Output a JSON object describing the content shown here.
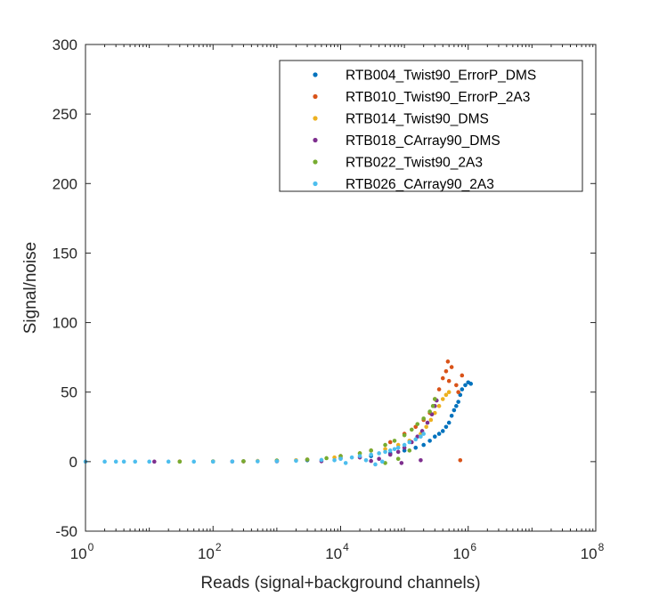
{
  "chart_data": {
    "type": "scatter",
    "title": "",
    "xlabel": "Reads (signal+background channels)",
    "ylabel": "Signal/noise",
    "x_scale": "log",
    "xlim": [
      1,
      100000000
    ],
    "ylim": [
      -50,
      300
    ],
    "x_ticks": [
      {
        "base": "10",
        "exp": "0"
      },
      {
        "base": "10",
        "exp": "2"
      },
      {
        "base": "10",
        "exp": "4"
      },
      {
        "base": "10",
        "exp": "6"
      },
      {
        "base": "10",
        "exp": "8"
      }
    ],
    "y_ticks": [
      "-50",
      "0",
      "50",
      "100",
      "150",
      "200",
      "250",
      "300"
    ],
    "grid": false,
    "legend_position": "top-right",
    "series": [
      {
        "name": "RTB004_Twist90_ErrorP_DMS",
        "color": "#0072BD",
        "points": [
          [
            200000,
            12
          ],
          [
            300000,
            18
          ],
          [
            400000,
            22
          ],
          [
            500000,
            28
          ],
          [
            550000,
            33
          ],
          [
            600000,
            37
          ],
          [
            650000,
            40
          ],
          [
            700000,
            43
          ],
          [
            750000,
            48
          ],
          [
            800000,
            52
          ],
          [
            900000,
            55
          ],
          [
            1000000,
            57
          ],
          [
            1100000,
            56
          ],
          [
            450000,
            25
          ],
          [
            350000,
            20
          ],
          [
            250000,
            15
          ],
          [
            150000,
            10
          ],
          [
            100000,
            8
          ],
          [
            60000,
            6
          ],
          [
            30000,
            4
          ],
          [
            10000,
            2.5
          ],
          [
            3000,
            1
          ],
          [
            1000,
            0.5
          ],
          [
            300,
            0.2
          ],
          [
            100,
            0.1
          ]
        ]
      },
      {
        "name": "RTB010_Twist90_ErrorP_2A3",
        "color": "#D95319",
        "points": [
          [
            300000,
            45
          ],
          [
            350000,
            52
          ],
          [
            400000,
            60
          ],
          [
            450000,
            65
          ],
          [
            480000,
            72
          ],
          [
            550000,
            68
          ],
          [
            650000,
            55
          ],
          [
            700000,
            50
          ],
          [
            800000,
            62
          ],
          [
            750000,
            1
          ],
          [
            500000,
            58
          ],
          [
            250000,
            35
          ],
          [
            200000,
            30
          ],
          [
            150000,
            25
          ],
          [
            100000,
            20
          ],
          [
            60000,
            14
          ],
          [
            30000,
            8
          ],
          [
            10000,
            4
          ],
          [
            3000,
            1.5
          ],
          [
            1000,
            0.7
          ],
          [
            300,
            0.2
          ],
          [
            30,
            0.1
          ]
        ]
      },
      {
        "name": "RTB014_Twist90_DMS",
        "color": "#EDB120",
        "points": [
          [
            180000,
            20
          ],
          [
            220000,
            25
          ],
          [
            260000,
            30
          ],
          [
            300000,
            35
          ],
          [
            350000,
            40
          ],
          [
            400000,
            45
          ],
          [
            450000,
            48
          ],
          [
            500000,
            50
          ],
          [
            120000,
            15
          ],
          [
            80000,
            12
          ],
          [
            50000,
            9
          ],
          [
            20000,
            6
          ],
          [
            8000,
            3
          ],
          [
            2000,
            1
          ],
          [
            500,
            0.5
          ],
          [
            100,
            0.2
          ]
        ]
      },
      {
        "name": "RTB018_CArray90_DMS",
        "color": "#7E2F8E",
        "points": [
          [
            20000,
            3
          ],
          [
            40000,
            2
          ],
          [
            60000,
            5
          ],
          [
            80000,
            7
          ],
          [
            100000,
            10
          ],
          [
            130000,
            14
          ],
          [
            160000,
            18
          ],
          [
            190000,
            22
          ],
          [
            230000,
            28
          ],
          [
            270000,
            34
          ],
          [
            300000,
            40
          ],
          [
            320000,
            44
          ],
          [
            180000,
            1
          ],
          [
            90000,
            -1
          ],
          [
            30000,
            0.5
          ],
          [
            5000,
            0.3
          ],
          [
            1000,
            0.2
          ],
          [
            200,
            0.1
          ],
          [
            12,
            0
          ]
        ]
      },
      {
        "name": "RTB022_Twist90_2A3",
        "color": "#77AC30",
        "points": [
          [
            1000,
            0.8
          ],
          [
            3000,
            1.5
          ],
          [
            6000,
            2.5
          ],
          [
            10000,
            4
          ],
          [
            20000,
            6
          ],
          [
            30000,
            8
          ],
          [
            50000,
            12
          ],
          [
            70000,
            15
          ],
          [
            100000,
            19
          ],
          [
            130000,
            23
          ],
          [
            160000,
            27
          ],
          [
            200000,
            31
          ],
          [
            250000,
            36
          ],
          [
            280000,
            40
          ],
          [
            300000,
            45
          ],
          [
            50000,
            -1
          ],
          [
            80000,
            2
          ],
          [
            120000,
            8
          ],
          [
            300,
            0.3
          ],
          [
            100,
            0.1
          ],
          [
            30,
            0
          ]
        ]
      },
      {
        "name": "RTB026_CArray90_2A3",
        "color": "#4DBEEE",
        "points": [
          [
            1,
            0
          ],
          [
            2,
            0
          ],
          [
            3,
            0
          ],
          [
            4,
            0
          ],
          [
            6,
            0
          ],
          [
            10,
            0
          ],
          [
            20,
            0
          ],
          [
            50,
            0
          ],
          [
            100,
            0
          ],
          [
            200,
            0.1
          ],
          [
            500,
            0.2
          ],
          [
            1000,
            0.3
          ],
          [
            2000,
            0.6
          ],
          [
            5000,
            1.2
          ],
          [
            10000,
            2
          ],
          [
            15000,
            3
          ],
          [
            20000,
            4
          ],
          [
            30000,
            5
          ],
          [
            40000,
            6
          ],
          [
            50000,
            7
          ],
          [
            60000,
            8
          ],
          [
            70000,
            9
          ],
          [
            80000,
            10
          ],
          [
            100000,
            12
          ],
          [
            120000,
            14
          ],
          [
            150000,
            16
          ],
          [
            180000,
            18
          ],
          [
            200000,
            20
          ],
          [
            8000,
            1
          ],
          [
            12000,
            -1
          ],
          [
            25000,
            1
          ],
          [
            35000,
            -2
          ],
          [
            45000,
            0
          ]
        ]
      }
    ]
  }
}
